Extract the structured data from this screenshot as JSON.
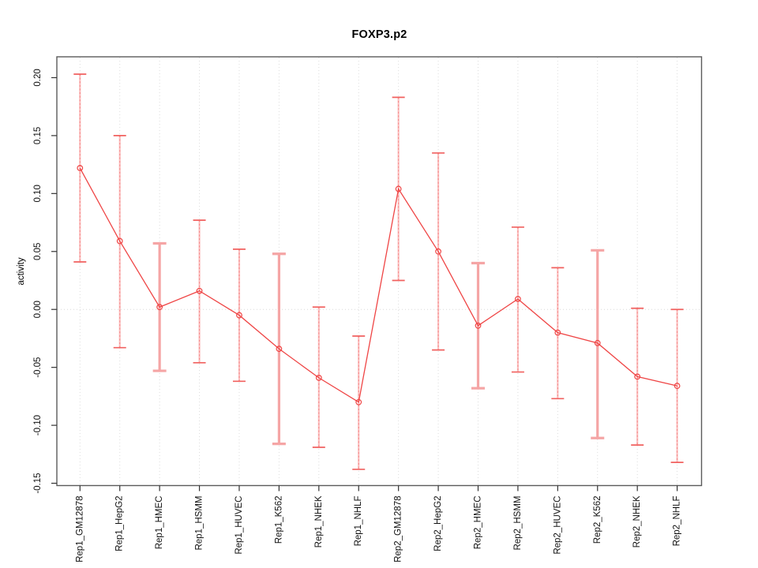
{
  "figure": {
    "background": "#ffffff"
  },
  "chart_data": {
    "type": "line",
    "title": "FOXP3.p2",
    "xlabel": "",
    "ylabel": "activity",
    "legend": "none",
    "grid": "vertical dotted gridline at every category; dotted horizontal reference line at y=0; full box border",
    "marker": "open-circle",
    "categories": [
      "Rep1_GM12878",
      "Rep1_HepG2",
      "Rep1_HMEC",
      "Rep1_HSMM",
      "Rep1_HUVEC",
      "Rep1_K562",
      "Rep1_NHEK",
      "Rep1_NHLF",
      "Rep2_GM12878",
      "Rep2_HepG2",
      "Rep2_HMEC",
      "Rep2_HSMM",
      "Rep2_HUVEC",
      "Rep2_K562",
      "Rep2_NHEK",
      "Rep2_NHLF"
    ],
    "series": [
      {
        "name": "activity",
        "values": [
          0.122,
          0.059,
          0.002,
          0.016,
          -0.005,
          -0.034,
          -0.059,
          -0.08,
          0.104,
          0.05,
          -0.014,
          0.009,
          -0.02,
          -0.029,
          -0.058,
          -0.066
        ],
        "error_upper": [
          0.203,
          0.15,
          0.057,
          0.077,
          0.052,
          0.048,
          0.002,
          -0.023,
          0.183,
          0.135,
          0.04,
          0.071,
          0.036,
          0.051,
          0.001,
          0.0
        ],
        "error_lower": [
          0.041,
          -0.033,
          -0.053,
          -0.046,
          -0.062,
          -0.116,
          -0.119,
          -0.138,
          0.025,
          -0.035,
          -0.068,
          -0.054,
          -0.077,
          -0.111,
          -0.117,
          -0.132
        ]
      }
    ],
    "emphasized_error_bar_categories": [
      "Rep1_HMEC",
      "Rep1_K562",
      "Rep2_HMEC",
      "Rep2_K562"
    ],
    "ylim": [
      -0.152,
      0.218
    ],
    "ytick_labels": [
      "-0.15",
      "-0.10",
      "-0.05",
      "0.00",
      "0.05",
      "0.10",
      "0.15",
      "0.20"
    ],
    "colors": {
      "series_line": "#ef4545",
      "marker": "#ef4545",
      "error_bar_thin": "#f1615f",
      "error_bar_thin_dash": "#f58585",
      "error_bar_thick": "#f5a5a5",
      "gridline": "#dcdcdc",
      "zero_line": "#d9d9d9",
      "plot_border": "#5a5a5a",
      "tick": "#333333",
      "text": "#111111"
    }
  }
}
